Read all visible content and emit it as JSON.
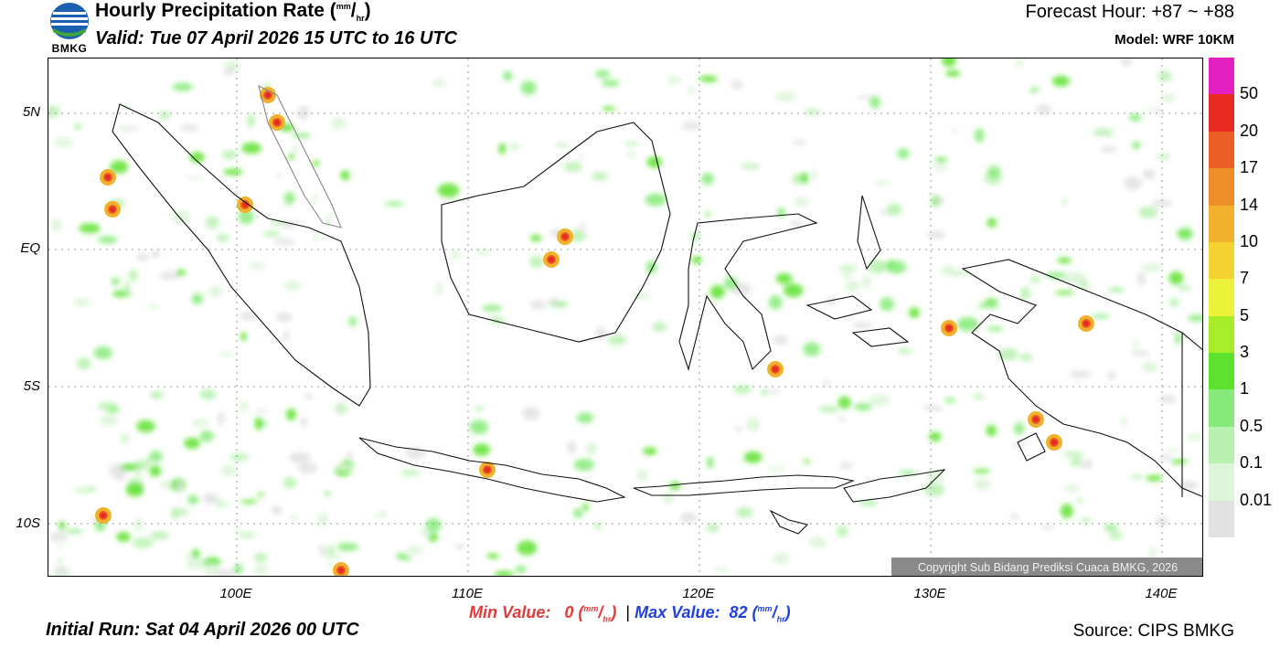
{
  "header": {
    "title": "Hourly Precipitation Rate (",
    "unit_num": "mm",
    "unit_sep": "/",
    "unit_den": "hr",
    "title_close": ")",
    "valid": "Valid: Tue 07 April 2026 15 UTC to 16 UTC",
    "forecast_hour": "Forecast Hour: +87 ~ +88",
    "model": "Model: WRF 10KM"
  },
  "logo": {
    "text": "BMKG",
    "icon": "bmkg-logo-icon"
  },
  "map": {
    "lat_labels": [
      "5N",
      "EQ",
      "5S",
      "10S"
    ],
    "lon_labels": [
      "100E",
      "110E",
      "120E",
      "130E",
      "140E"
    ],
    "copyright": "Copyright Sub Bidang Prediksi Cuaca BMKG, 2026"
  },
  "colorbar": {
    "labels": [
      "50",
      "20",
      "17",
      "14",
      "10",
      "7",
      "5",
      "3",
      "1",
      "0.5",
      "0.1",
      "0.01"
    ],
    "colors": [
      "#e41fbf",
      "#e82a22",
      "#ea5d24",
      "#ee8e28",
      "#f1b12c",
      "#f3d232",
      "#ecf23a",
      "#a9ec2a",
      "#5ee22e",
      "#86ea7a",
      "#b8f0b0",
      "#dcf4d8",
      "#e2e2e2"
    ]
  },
  "footer": {
    "min_label": "Min Value:",
    "min_value": "0",
    "max_label": "Max Value:",
    "max_value": "82",
    "unit_num": "mm",
    "unit_den": "hr",
    "separator": "|",
    "initial_run": "Initial Run: Sat 04 April 2026 00 UTC",
    "source": "Source: CIPS BMKG"
  }
}
